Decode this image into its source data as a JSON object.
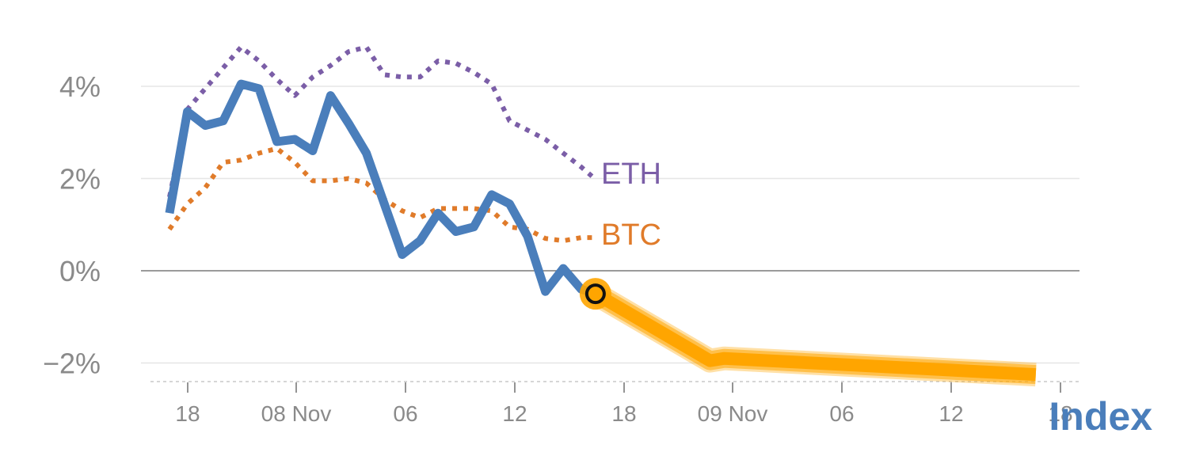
{
  "chart_data": {
    "type": "line",
    "y_unit": "%",
    "ylim": [
      -2.4,
      5
    ],
    "y_ticks": [
      {
        "value": 4,
        "label": "4%"
      },
      {
        "value": 2,
        "label": "2%"
      },
      {
        "value": 0,
        "label": "0%"
      },
      {
        "value": -2,
        "label": "−2%"
      }
    ],
    "x_ticks": [
      "18",
      "08 Nov",
      "06",
      "12",
      "18",
      "09 Nov",
      "06",
      "12",
      "18"
    ],
    "grid": true,
    "series": [
      {
        "name": "Index",
        "style": "solid",
        "color": "#4a7ebb",
        "points": [
          [
            0.0,
            1.25
          ],
          [
            0.5,
            3.45
          ],
          [
            1.0,
            3.15
          ],
          [
            1.5,
            3.25
          ],
          [
            2.0,
            4.05
          ],
          [
            2.5,
            3.95
          ],
          [
            3.0,
            2.8
          ],
          [
            3.5,
            2.85
          ],
          [
            4.0,
            2.6
          ],
          [
            4.5,
            3.8
          ],
          [
            5.0,
            3.2
          ],
          [
            5.5,
            2.55
          ],
          [
            6.0,
            1.45
          ],
          [
            6.5,
            0.35
          ],
          [
            7.0,
            0.65
          ],
          [
            7.5,
            1.25
          ],
          [
            8.0,
            0.85
          ],
          [
            8.5,
            0.95
          ],
          [
            9.0,
            1.65
          ],
          [
            9.5,
            1.45
          ],
          [
            10.0,
            0.75
          ],
          [
            10.5,
            -0.45
          ],
          [
            11.0,
            0.05
          ],
          [
            11.5,
            -0.4
          ],
          [
            11.9,
            -0.5
          ]
        ]
      },
      {
        "name": "ETH",
        "style": "dotted",
        "color": "#7b5ea7",
        "points": [
          [
            0.0,
            1.6
          ],
          [
            0.5,
            3.5
          ],
          [
            1.0,
            3.95
          ],
          [
            1.5,
            4.4
          ],
          [
            2.0,
            4.85
          ],
          [
            2.5,
            4.55
          ],
          [
            3.0,
            4.15
          ],
          [
            3.5,
            3.8
          ],
          [
            4.0,
            4.2
          ],
          [
            4.5,
            4.45
          ],
          [
            5.0,
            4.75
          ],
          [
            5.5,
            4.85
          ],
          [
            6.0,
            4.25
          ],
          [
            6.5,
            4.2
          ],
          [
            7.0,
            4.2
          ],
          [
            7.5,
            4.55
          ],
          [
            8.0,
            4.5
          ],
          [
            8.5,
            4.3
          ],
          [
            9.0,
            4.05
          ],
          [
            9.5,
            3.25
          ],
          [
            10.0,
            3.05
          ],
          [
            10.5,
            2.85
          ],
          [
            11.0,
            2.55
          ],
          [
            11.5,
            2.25
          ],
          [
            11.8,
            2.05
          ]
        ]
      },
      {
        "name": "BTC",
        "style": "dotted",
        "color": "#e07b2a",
        "points": [
          [
            0.0,
            0.9
          ],
          [
            0.5,
            1.45
          ],
          [
            1.0,
            1.8
          ],
          [
            1.5,
            2.35
          ],
          [
            2.0,
            2.4
          ],
          [
            2.5,
            2.55
          ],
          [
            3.0,
            2.65
          ],
          [
            3.5,
            2.35
          ],
          [
            4.0,
            1.95
          ],
          [
            4.5,
            1.95
          ],
          [
            5.0,
            2.0
          ],
          [
            5.5,
            1.9
          ],
          [
            6.0,
            1.55
          ],
          [
            6.5,
            1.3
          ],
          [
            7.0,
            1.15
          ],
          [
            7.5,
            1.35
          ],
          [
            8.0,
            1.35
          ],
          [
            8.5,
            1.35
          ],
          [
            9.0,
            1.3
          ],
          [
            9.5,
            0.95
          ],
          [
            10.0,
            0.9
          ],
          [
            10.5,
            0.7
          ],
          [
            11.0,
            0.65
          ],
          [
            11.5,
            0.72
          ],
          [
            11.8,
            0.72
          ]
        ]
      }
    ],
    "forecast": {
      "color": "#ffa500",
      "points": [
        [
          11.9,
          -0.5
        ],
        [
          15.1,
          -1.95
        ],
        [
          15.5,
          -1.9
        ],
        [
          24.2,
          -2.25
        ]
      ]
    },
    "current_marker": {
      "x": 11.9,
      "y": -0.5
    }
  }
}
